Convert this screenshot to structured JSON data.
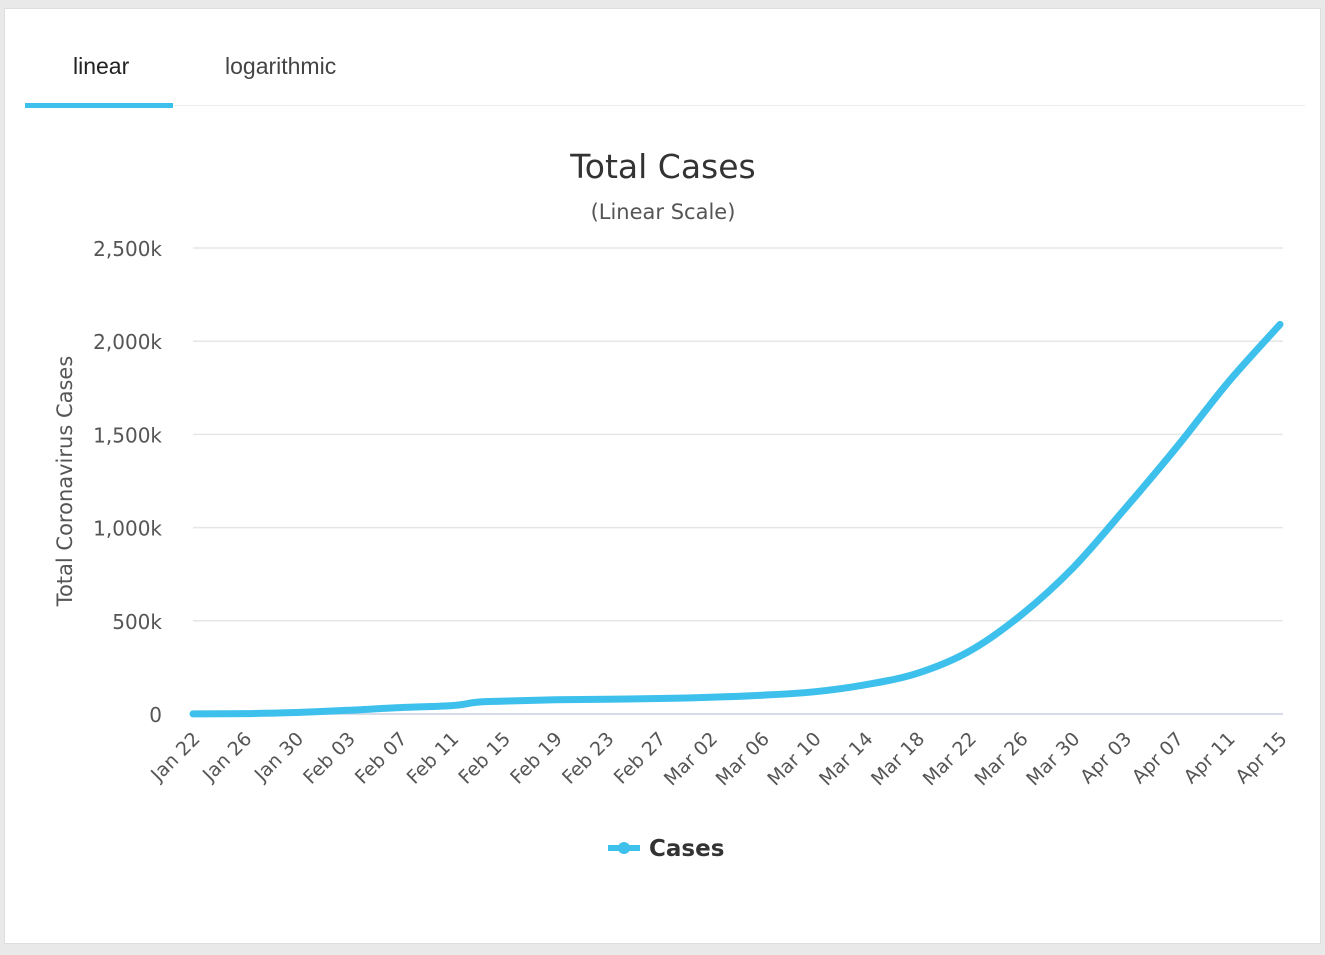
{
  "tabs": [
    {
      "label": "linear",
      "active": true
    },
    {
      "label": "logarithmic",
      "active": false
    }
  ],
  "accent_color": "#3ec0ec",
  "chart_data": {
    "type": "line",
    "title": "Total Cases",
    "subtitle": "(Linear Scale)",
    "ylabel": "Total Coronavirus Cases",
    "xlabel": "",
    "ylim": [
      0,
      2500000
    ],
    "y_ticks": [
      0,
      500000,
      1000000,
      1500000,
      2000000,
      2500000
    ],
    "y_tick_labels": [
      "0",
      "500k",
      "1,000k",
      "1,500k",
      "2,000k",
      "2,500k"
    ],
    "x_tick_labels": [
      "Jan 22",
      "Jan 26",
      "Jan 30",
      "Feb 03",
      "Feb 07",
      "Feb 11",
      "Feb 15",
      "Feb 19",
      "Feb 23",
      "Feb 27",
      "Mar 02",
      "Mar 06",
      "Mar 10",
      "Mar 14",
      "Mar 18",
      "Mar 22",
      "Mar 26",
      "Mar 30",
      "Apr 03",
      "Apr 07",
      "Apr 11",
      "Apr 15"
    ],
    "grid": true,
    "legend_position": "bottom-center",
    "series": [
      {
        "name": "Cases",
        "color": "#3ec0ec",
        "points": [
          {
            "x": "Jan 22",
            "y": 600
          },
          {
            "x": "Jan 26",
            "y": 2100
          },
          {
            "x": "Jan 30",
            "y": 8200
          },
          {
            "x": "Feb 03",
            "y": 20000
          },
          {
            "x": "Feb 07",
            "y": 34500
          },
          {
            "x": "Feb 11",
            "y": 45000
          },
          {
            "x": "Feb 13",
            "y": 64000
          },
          {
            "x": "Feb 15",
            "y": 69000
          },
          {
            "x": "Feb 19",
            "y": 76000
          },
          {
            "x": "Feb 23",
            "y": 79000
          },
          {
            "x": "Feb 27",
            "y": 83000
          },
          {
            "x": "Mar 02",
            "y": 90000
          },
          {
            "x": "Mar 06",
            "y": 101000
          },
          {
            "x": "Mar 10",
            "y": 119000
          },
          {
            "x": "Mar 14",
            "y": 157000
          },
          {
            "x": "Mar 18",
            "y": 219000
          },
          {
            "x": "Mar 22",
            "y": 337000
          },
          {
            "x": "Mar 26",
            "y": 531000
          },
          {
            "x": "Mar 30",
            "y": 784000
          },
          {
            "x": "Apr 03",
            "y": 1100000
          },
          {
            "x": "Apr 07",
            "y": 1430000
          },
          {
            "x": "Apr 11",
            "y": 1780000
          },
          {
            "x": "Apr 15",
            "y": 2090000
          }
        ]
      }
    ]
  }
}
